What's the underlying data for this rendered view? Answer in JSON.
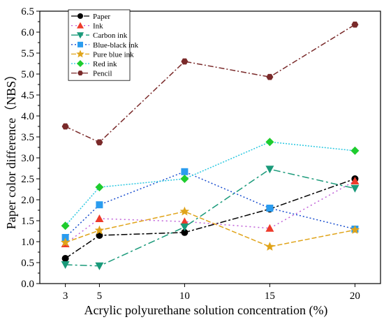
{
  "chart_data": {
    "type": "line",
    "xlabel": "Acrylic polyurethane solution concentration (%)",
    "ylabel": "Paper color difference（NBS）",
    "x": [
      3,
      5,
      10,
      15,
      20
    ],
    "x_ticks": [
      "3",
      "5",
      "10",
      "15",
      "20"
    ],
    "xlim": [
      1.5,
      21.5
    ],
    "ylim": [
      0,
      6.5
    ],
    "y_ticks": [
      "0.0",
      "0.5",
      "1.0",
      "1.5",
      "2.0",
      "2.5",
      "3.0",
      "3.5",
      "4.0",
      "4.5",
      "5.0",
      "5.5",
      "6.0",
      "6.5"
    ],
    "legend_position": "top-left",
    "series": [
      {
        "name": "Paper",
        "values": [
          0.6,
          1.15,
          1.22,
          1.78,
          2.5
        ],
        "color": "#000000",
        "marker": "circle",
        "dash": "9,3,3,3"
      },
      {
        "name": "Ink",
        "values": [
          0.95,
          1.55,
          1.48,
          1.32,
          2.45
        ],
        "color": "#ee3b2b",
        "marker": "triangle-up",
        "dash": "2,4"
      },
      {
        "name": "Carbon ink",
        "values": [
          0.45,
          0.42,
          1.35,
          2.73,
          2.27
        ],
        "color": "#1a9a7a",
        "marker": "triangle-down",
        "dash": "10,4,3,4"
      },
      {
        "name": "Blue-black ink",
        "values": [
          1.1,
          1.88,
          2.67,
          1.8,
          1.3
        ],
        "color": "#2a9cef",
        "marker": "square",
        "dash": "2,3"
      },
      {
        "name": "Pure blue ink",
        "values": [
          0.98,
          1.27,
          1.72,
          0.88,
          1.28
        ],
        "color": "#e0a41a",
        "marker": "star",
        "dash": "7,3"
      },
      {
        "name": "Red ink",
        "values": [
          1.38,
          2.3,
          2.5,
          3.38,
          3.17
        ],
        "color": "#1ecc2e",
        "marker": "diamond",
        "dash": "2,2"
      },
      {
        "name": "Pencil",
        "values": [
          3.75,
          3.37,
          5.3,
          4.93,
          6.18
        ],
        "color": "#7a2a2a",
        "marker": "hexagon",
        "dash": "8,3,2,3"
      }
    ],
    "line_colors": {
      "Ink": "#c060d8",
      "Blue-black ink": "#1a4fcf",
      "Red ink": "#2ac8e0"
    }
  }
}
